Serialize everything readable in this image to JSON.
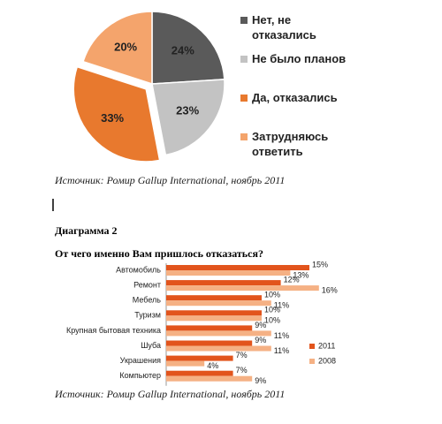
{
  "chart_data": [
    {
      "type": "pie",
      "categories": [
        "Нет, не отказались",
        "Не было планов",
        "Да, отказались",
        "Затрудняюсь ответить"
      ],
      "values": [
        24,
        23,
        33,
        20
      ],
      "value_labels": [
        "24%",
        "23%",
        "33%",
        "20%"
      ],
      "colors": [
        "#5a5a5a",
        "#c3c3c3",
        "#e8792e",
        "#f4a46c"
      ],
      "exploded": 2,
      "source": "Источник: Ромир Gallup International, ноябрь 2011"
    },
    {
      "type": "bar",
      "heading": "Диаграмма 2",
      "title": "От чего именно Вам пришлось отказаться?",
      "categories": [
        "Автомобиль",
        "Ремонт",
        "Мебель",
        "Туризм",
        "Крупная бытовая техника",
        "Шуба",
        "Украшения",
        "Компьютер"
      ],
      "series": [
        {
          "name": "2011",
          "color": "#e2541c",
          "values": [
            15,
            12,
            10,
            10,
            9,
            9,
            7,
            7
          ],
          "value_labels": [
            "15%",
            "12%",
            "10%",
            "10%",
            "9%",
            "9%",
            "7%",
            "7%"
          ]
        },
        {
          "name": "2008",
          "color": "#f5b184",
          "values": [
            13,
            16,
            11,
            10,
            11,
            11,
            4,
            9
          ],
          "value_labels": [
            "13%",
            "16%",
            "11%",
            "10%",
            "11%",
            "11%",
            "4%",
            "9%"
          ]
        }
      ],
      "source": "Источник: Ромир Gallup International, ноябрь 2011"
    }
  ]
}
